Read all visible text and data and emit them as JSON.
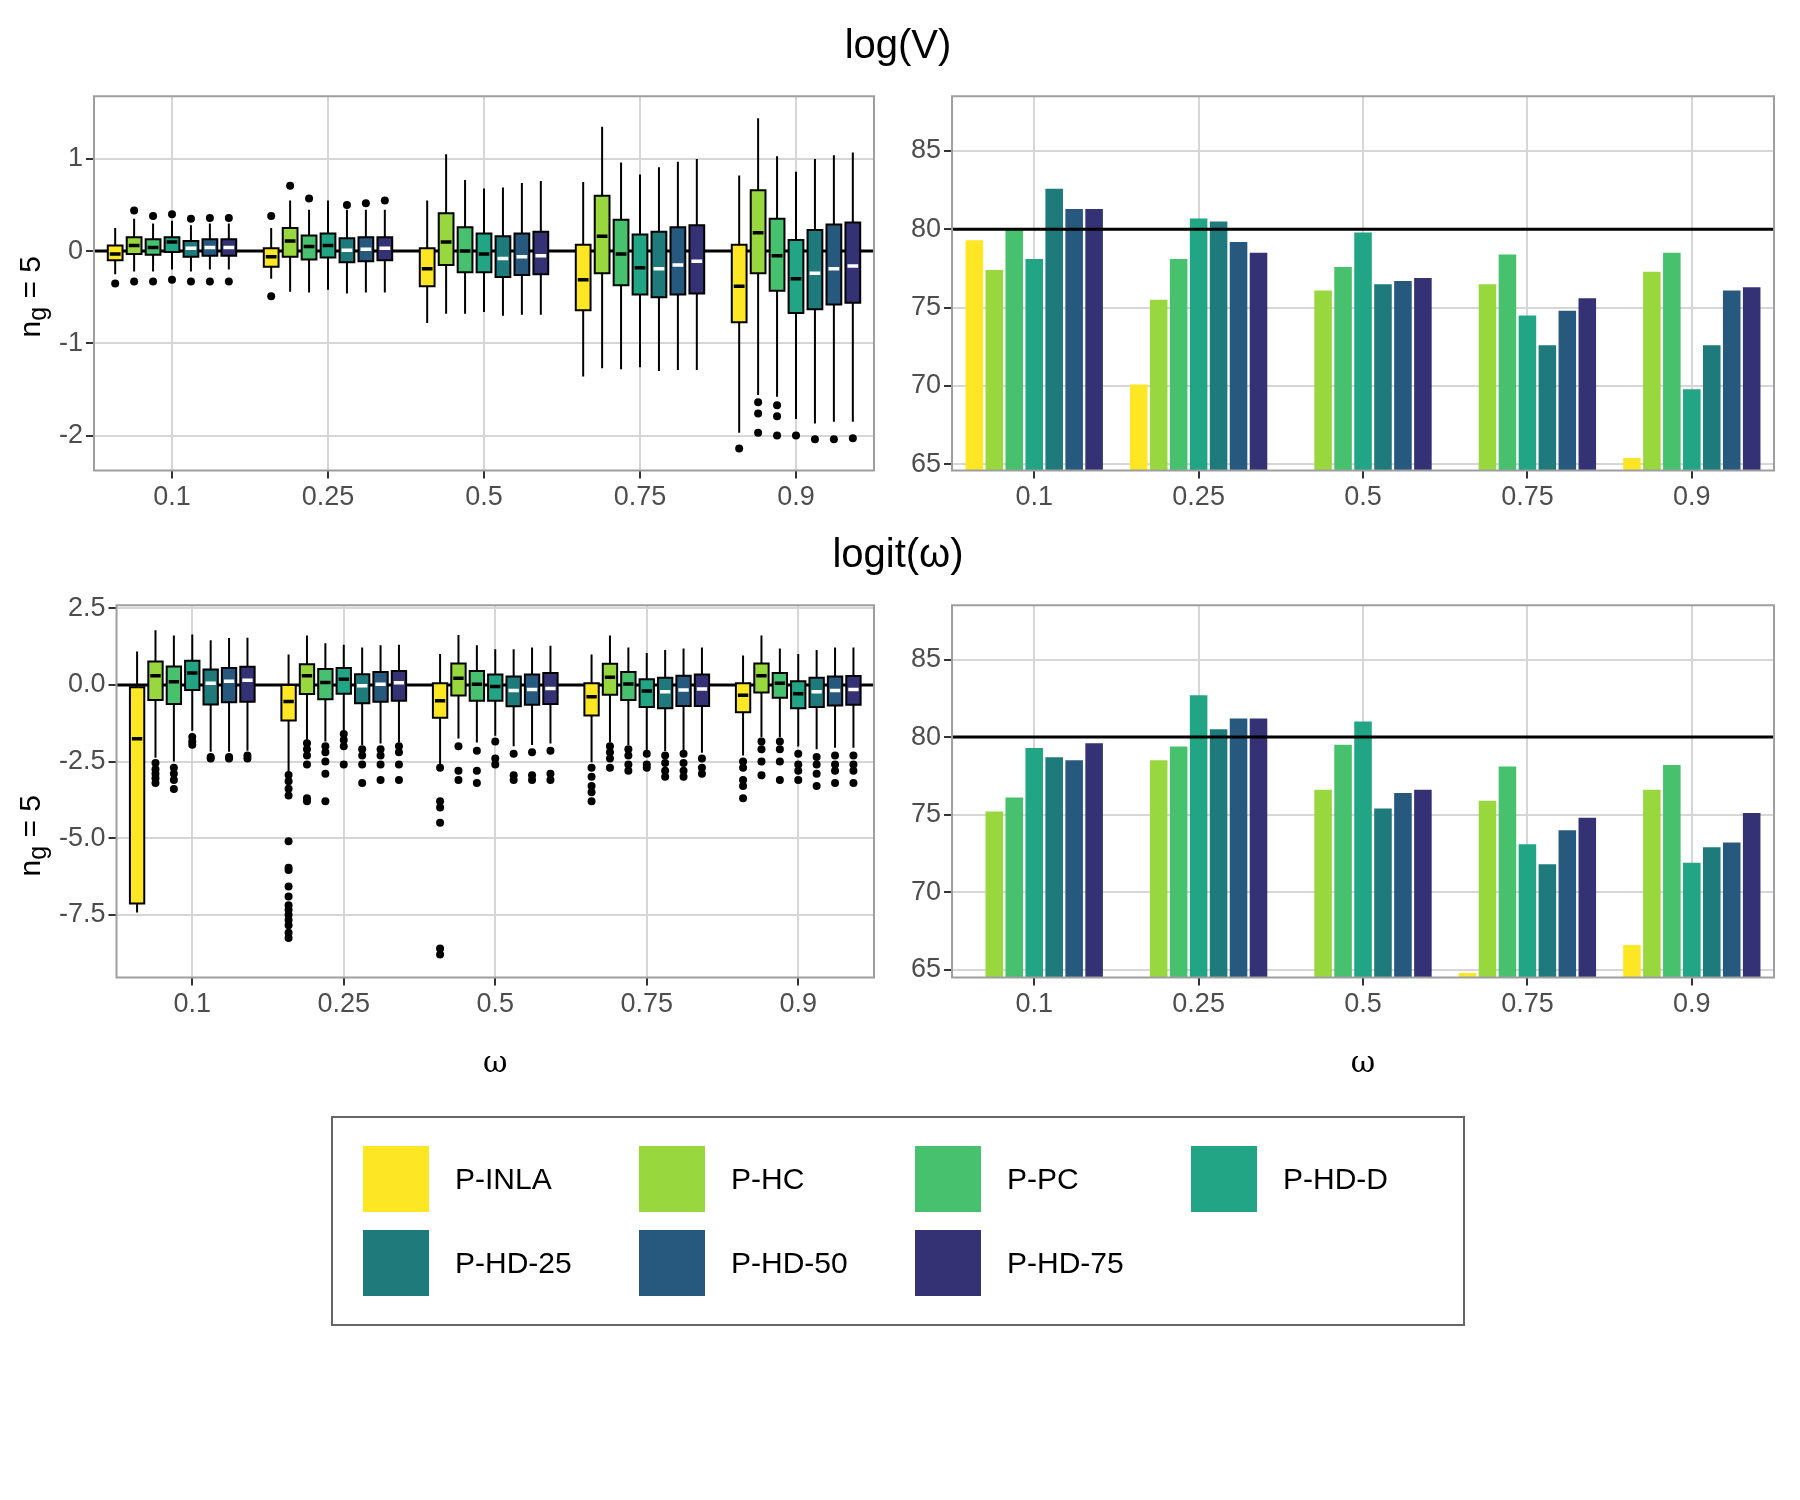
{
  "chart_data": [
    {
      "type": "box",
      "title": "log(V)",
      "ylabel": "n$_{g}$ = 5",
      "categories": [
        "0.1",
        "0.25",
        "0.5",
        "0.75",
        "0.9"
      ],
      "ylim": [
        -2.38,
        1.68
      ],
      "yticks": [
        -2,
        -1,
        0,
        1
      ],
      "grid": true,
      "legend": "bottom",
      "ref_lines": [
        {
          "axis": "y",
          "value": 0,
          "color": "#000000"
        }
      ],
      "series": [
        {
          "name": "P-INLA",
          "color": "#fde725",
          "boxes": [
            {
              "low": -0.25,
              "q1": -0.1,
              "median": -0.03,
              "q3": 0.06,
              "high": 0.25,
              "outliers": [
                -0.35
              ]
            },
            {
              "low": -0.3,
              "q1": -0.17,
              "median": -0.06,
              "q3": 0.03,
              "high": 0.25,
              "outliers": [
                0.38,
                -0.49
              ]
            },
            {
              "low": -0.78,
              "q1": -0.38,
              "median": -0.19,
              "q3": 0.03,
              "high": 0.55
            },
            {
              "low": -1.36,
              "q1": -0.64,
              "median": -0.31,
              "q3": 0.07,
              "high": 0.75
            },
            {
              "low": -1.97,
              "q1": -0.77,
              "median": -0.38,
              "q3": 0.07,
              "high": 0.82,
              "outliers": [
                -2.14
              ]
            }
          ]
        },
        {
          "name": "P-HC",
          "color": "#98d83e",
          "boxes": [
            {
              "low": -0.22,
              "q1": -0.03,
              "median": 0.06,
              "q3": 0.15,
              "high": 0.35,
              "outliers": [
                0.44,
                -0.33
              ]
            },
            {
              "low": -0.44,
              "q1": -0.06,
              "median": 0.11,
              "q3": 0.25,
              "high": 0.55,
              "outliers": [
                0.71
              ]
            },
            {
              "low": -0.68,
              "q1": -0.15,
              "median": 0.1,
              "q3": 0.41,
              "high": 1.05
            },
            {
              "low": -1.27,
              "q1": -0.24,
              "median": 0.16,
              "q3": 0.6,
              "high": 1.35
            },
            {
              "low": -1.56,
              "q1": -0.24,
              "median": 0.2,
              "q3": 0.66,
              "high": 1.44,
              "outliers": [
                -1.64,
                -1.76,
                -1.97
              ]
            }
          ]
        },
        {
          "name": "P-PC",
          "color": "#48c16e",
          "boxes": [
            {
              "low": -0.22,
              "q1": -0.04,
              "median": 0.04,
              "q3": 0.13,
              "high": 0.3,
              "outliers": [
                0.38,
                -0.33
              ]
            },
            {
              "low": -0.45,
              "q1": -0.09,
              "median": 0.05,
              "q3": 0.17,
              "high": 0.45,
              "outliers": [
                0.57
              ]
            },
            {
              "low": -0.68,
              "q1": -0.23,
              "median": 0,
              "q3": 0.26,
              "high": 0.77
            },
            {
              "low": -1.28,
              "q1": -0.37,
              "median": -0.03,
              "q3": 0.34,
              "high": 0.96
            },
            {
              "low": -1.58,
              "q1": -0.43,
              "median": -0.05,
              "q3": 0.35,
              "high": 1.03,
              "outliers": [
                -1.67,
                -1.79,
                -2.0
              ]
            }
          ]
        },
        {
          "name": "P-HD-D",
          "color": "#21a585",
          "boxes": [
            {
              "low": -0.2,
              "q1": -0.01,
              "median": 0.1,
              "q3": 0.15,
              "high": 0.33,
              "outliers": [
                0.4,
                -0.31
              ]
            },
            {
              "low": -0.42,
              "q1": -0.07,
              "median": 0.06,
              "q3": 0.19,
              "high": 0.55
            },
            {
              "low": -0.66,
              "q1": -0.23,
              "median": -0.03,
              "q3": 0.19,
              "high": 0.68
            },
            {
              "low": -1.26,
              "q1": -0.47,
              "median": -0.18,
              "q3": 0.18,
              "high": 0.83
            },
            {
              "low": -1.82,
              "q1": -0.67,
              "median": -0.3,
              "q3": 0.12,
              "high": 0.86,
              "outliers": [
                -2.0
              ]
            }
          ]
        },
        {
          "name": "P-HD-25",
          "color": "#1f7a7c",
          "boxes": [
            {
              "low": -0.22,
              "q1": -0.06,
              "median": 0.03,
              "q3": 0.11,
              "high": 0.28,
              "outliers": [
                0.35,
                -0.33
              ]
            },
            {
              "low": -0.46,
              "q1": -0.12,
              "median": 0.01,
              "q3": 0.14,
              "high": 0.45,
              "outliers": [
                0.5
              ]
            },
            {
              "low": -0.7,
              "q1": -0.28,
              "median": -0.08,
              "q3": 0.16,
              "high": 0.69
            },
            {
              "low": -1.3,
              "q1": -0.5,
              "median": -0.19,
              "q3": 0.21,
              "high": 0.91
            },
            {
              "low": -1.87,
              "q1": -0.63,
              "median": -0.24,
              "q3": 0.23,
              "high": 1.0,
              "outliers": [
                -2.04
              ]
            }
          ]
        },
        {
          "name": "P-HD-50",
          "color": "#27587e",
          "boxes": [
            {
              "low": -0.2,
              "q1": -0.05,
              "median": 0.04,
              "q3": 0.13,
              "high": 0.3,
              "outliers": [
                0.36,
                -0.33
              ]
            },
            {
              "low": -0.45,
              "q1": -0.11,
              "median": 0.02,
              "q3": 0.15,
              "high": 0.45,
              "outliers": [
                0.52
              ]
            },
            {
              "low": -0.69,
              "q1": -0.26,
              "median": -0.06,
              "q3": 0.19,
              "high": 0.74
            },
            {
              "low": -1.29,
              "q1": -0.47,
              "median": -0.15,
              "q3": 0.26,
              "high": 0.97
            },
            {
              "low": -1.85,
              "q1": -0.58,
              "median": -0.19,
              "q3": 0.29,
              "high": 1.04,
              "outliers": [
                -2.04
              ]
            }
          ]
        },
        {
          "name": "P-HD-75",
          "color": "#343274",
          "boxes": [
            {
              "low": -0.2,
              "q1": -0.05,
              "median": 0.04,
              "q3": 0.13,
              "high": 0.3,
              "outliers": [
                0.36,
                -0.33
              ]
            },
            {
              "low": -0.45,
              "q1": -0.1,
              "median": 0.03,
              "q3": 0.15,
              "high": 0.45,
              "outliers": [
                0.55
              ]
            },
            {
              "low": -0.69,
              "q1": -0.25,
              "median": -0.05,
              "q3": 0.21,
              "high": 0.76
            },
            {
              "low": -1.29,
              "q1": -0.46,
              "median": -0.11,
              "q3": 0.28,
              "high": 1.0
            },
            {
              "low": -1.85,
              "q1": -0.56,
              "median": -0.16,
              "q3": 0.31,
              "high": 1.07,
              "outliers": [
                -2.03
              ]
            }
          ]
        }
      ]
    },
    {
      "type": "bar",
      "categories": [
        "0.1",
        "0.25",
        "0.5",
        "0.75",
        "0.9"
      ],
      "ylim": [
        64.6,
        88.5
      ],
      "yticks": [
        65,
        70,
        75,
        80,
        85
      ],
      "grid": true,
      "ref_lines": [
        {
          "axis": "y",
          "value": 80,
          "color": "#000000"
        }
      ],
      "series": [
        {
          "color": "#fde725",
          "values": [
            79.3,
            70.1,
            null,
            null,
            65.4
          ]
        },
        {
          "color": "#98d83e",
          "values": [
            77.4,
            75.5,
            76.1,
            76.5,
            77.3
          ]
        },
        {
          "color": "#48c16e",
          "values": [
            80.0,
            78.1,
            77.6,
            78.4,
            78.5
          ]
        },
        {
          "color": "#21a585",
          "values": [
            78.1,
            80.7,
            79.8,
            74.5,
            69.8
          ]
        },
        {
          "color": "#1f7a7c",
          "values": [
            82.6,
            80.5,
            76.5,
            72.6,
            72.6
          ]
        },
        {
          "color": "#27587e",
          "values": [
            81.3,
            79.2,
            76.7,
            74.8,
            76.1
          ]
        },
        {
          "color": "#343274",
          "values": [
            81.3,
            78.5,
            76.9,
            75.6,
            76.3
          ]
        }
      ]
    },
    {
      "type": "box",
      "title": "logit(ω)",
      "ylabel": "n$_{g}$ = 5",
      "xlabel": "ω",
      "categories": [
        "0.1",
        "0.25",
        "0.5",
        "0.75",
        "0.9"
      ],
      "ylim": [
        -9.55,
        2.6
      ],
      "yticks": [
        {
          "value": -7.5,
          "label": "-7.5"
        },
        {
          "value": -5,
          "label": "-5.0"
        },
        {
          "value": -2.5,
          "label": "-2.5"
        },
        {
          "value": 0,
          "label": "0.0"
        },
        {
          "value": 2.5,
          "label": "2.5"
        }
      ],
      "grid": true,
      "ref_lines": [
        {
          "axis": "y",
          "value": 0,
          "color": "#000000"
        }
      ],
      "series": [
        {
          "color": "#fde725",
          "boxes": [
            {
              "low": -7.43,
              "q1": -7.13,
              "median": -1.76,
              "q3": -0.08,
              "high": 1.09
            },
            {
              "low": -2.87,
              "q1": -1.16,
              "median": -0.54,
              "q3": 0,
              "high": 0.99,
              "outliers": [
                -2.94,
                -3.14,
                -3.39,
                -3.61,
                -5.1,
                -5.97,
                -6.04,
                -6.58,
                -6.9,
                -7.19,
                -7.34,
                -7.5,
                -7.67,
                -7.84,
                -8.09,
                -8.26
              ]
            },
            {
              "low": -2.6,
              "q1": -1.07,
              "median": -0.52,
              "q3": 0.05,
              "high": 1.01,
              "outliers": [
                -2.7,
                -3.8,
                -4.0,
                -4.5,
                -8.6,
                -8.8
              ]
            },
            {
              "low": -2.52,
              "q1": -1.0,
              "median": -0.39,
              "q3": 0.05,
              "high": 0.99,
              "outliers": [
                -2.7,
                -3.0,
                -3.3,
                -3.5,
                -3.8
              ]
            },
            {
              "low": -2.3,
              "q1": -0.89,
              "median": -0.34,
              "q3": 0.05,
              "high": 0.96,
              "outliers": [
                -2.5,
                -2.7,
                -3.1,
                -3.3,
                -3.7
              ]
            }
          ]
        },
        {
          "color": "#98d83e",
          "boxes": [
            {
              "low": -2.38,
              "q1": -0.49,
              "median": 0.3,
              "q3": 0.76,
              "high": 1.78,
              "outliers": [
                -2.55,
                -2.75,
                -2.9,
                -3.05,
                -3.2
              ]
            },
            {
              "low": -1.8,
              "q1": -0.3,
              "median": 0.3,
              "q3": 0.67,
              "high": 1.61,
              "outliers": [
                -1.9,
                -2.1,
                -2.3,
                -2.6,
                -3.7,
                -3.8
              ]
            },
            {
              "low": -1.75,
              "q1": -0.35,
              "median": 0.22,
              "q3": 0.7,
              "high": 1.63,
              "outliers": [
                -2.0,
                -2.8,
                -3.1
              ]
            },
            {
              "low": -1.88,
              "q1": -0.32,
              "median": 0.25,
              "q3": 0.69,
              "high": 1.61,
              "outliers": [
                -2.0,
                -2.2,
                -2.4,
                -2.7
              ]
            },
            {
              "low": -1.71,
              "q1": -0.25,
              "median": 0.3,
              "q3": 0.7,
              "high": 1.61,
              "outliers": [
                -1.85,
                -2.1,
                -2.5,
                -2.95
              ]
            }
          ]
        },
        {
          "color": "#48c16e",
          "boxes": [
            {
              "low": -2.5,
              "q1": -0.62,
              "median": 0.1,
              "q3": 0.6,
              "high": 1.61,
              "outliers": [
                -2.7,
                -2.9,
                -3.1,
                -3.4
              ]
            },
            {
              "low": -1.85,
              "q1": -0.47,
              "median": 0.08,
              "q3": 0.52,
              "high": 1.36,
              "outliers": [
                -2.0,
                -2.2,
                -2.5,
                -2.9,
                -3.8
              ]
            },
            {
              "low": -1.88,
              "q1": -0.52,
              "median": 0.02,
              "q3": 0.45,
              "high": 1.29,
              "outliers": [
                -2.15,
                -2.8,
                -3.2
              ]
            },
            {
              "low": -1.96,
              "q1": -0.49,
              "median": 0.03,
              "q3": 0.42,
              "high": 1.22,
              "outliers": [
                -2.1,
                -2.3,
                -2.6,
                -2.8
              ]
            },
            {
              "low": -1.71,
              "q1": -0.42,
              "median": 0.05,
              "q3": 0.39,
              "high": 1.19,
              "outliers": [
                -1.85,
                -2.1,
                -2.5,
                -3.1
              ]
            }
          ]
        },
        {
          "color": "#21a585",
          "boxes": [
            {
              "low": -1.5,
              "q1": -0.17,
              "median": 0.39,
              "q3": 0.79,
              "high": 1.64,
              "outliers": [
                -1.7,
                -1.85,
                -1.95
              ]
            },
            {
              "low": -1.54,
              "q1": -0.29,
              "median": 0.18,
              "q3": 0.55,
              "high": 1.31,
              "outliers": [
                -1.6,
                -1.8,
                -2.0,
                -2.6
              ]
            },
            {
              "low": -1.66,
              "q1": -0.52,
              "median": -0.05,
              "q3": 0.34,
              "high": 1.16,
              "outliers": [
                -1.85,
                -2.4,
                -2.6
              ]
            },
            {
              "low": -2.13,
              "q1": -0.72,
              "median": -0.2,
              "q3": 0.18,
              "high": 1.04,
              "outliers": [
                -2.25,
                -2.6,
                -2.7
              ]
            },
            {
              "low": -2.01,
              "q1": -0.76,
              "median": -0.29,
              "q3": 0.12,
              "high": 1.01,
              "outliers": [
                -2.25,
                -2.6,
                -2.8,
                -3.1
              ]
            }
          ]
        },
        {
          "color": "#1f7a7c",
          "boxes": [
            {
              "low": -2.18,
              "q1": -0.64,
              "median": 0.05,
              "q3": 0.5,
              "high": 1.46,
              "outliers": [
                -2.35,
                -2.4
              ]
            },
            {
              "low": -1.96,
              "q1": -0.6,
              "median": -0.03,
              "q3": 0.35,
              "high": 1.22,
              "outliers": [
                -2.1,
                -2.3,
                -2.6,
                -3.2
              ]
            },
            {
              "low": -2.0,
              "q1": -0.7,
              "median": -0.18,
              "q3": 0.27,
              "high": 1.16,
              "outliers": [
                -2.25,
                -2.95,
                -3.1
              ]
            },
            {
              "low": -2.16,
              "q1": -0.76,
              "median": -0.22,
              "q3": 0.23,
              "high": 1.14,
              "outliers": [
                -2.3,
                -2.55,
                -2.8,
                -3.0
              ]
            },
            {
              "low": -2.1,
              "q1": -0.72,
              "median": -0.22,
              "q3": 0.23,
              "high": 1.14,
              "outliers": [
                -2.35,
                -2.6,
                -2.9,
                -3.3
              ]
            }
          ]
        },
        {
          "color": "#27587e",
          "boxes": [
            {
              "low": -2.18,
              "q1": -0.57,
              "median": 0.12,
              "q3": 0.55,
              "high": 1.53,
              "outliers": [
                -2.35,
                -2.4
              ]
            },
            {
              "low": -1.91,
              "q1": -0.55,
              "median": 0.02,
              "q3": 0.42,
              "high": 1.29,
              "outliers": [
                -2.1,
                -2.3,
                -2.6,
                -3.1
              ]
            },
            {
              "low": -1.96,
              "q1": -0.65,
              "median": -0.15,
              "q3": 0.34,
              "high": 1.22,
              "outliers": [
                -2.2,
                -2.95,
                -3.1
              ]
            },
            {
              "low": -2.13,
              "q1": -0.69,
              "median": -0.17,
              "q3": 0.3,
              "high": 1.19,
              "outliers": [
                -2.25,
                -2.55,
                -2.8,
                -3.0
              ]
            },
            {
              "low": -2.05,
              "q1": -0.67,
              "median": -0.18,
              "q3": 0.27,
              "high": 1.22,
              "outliers": [
                -2.3,
                -2.6,
                -2.8,
                -3.2
              ]
            }
          ]
        },
        {
          "color": "#343274",
          "boxes": [
            {
              "low": -2.15,
              "q1": -0.55,
              "median": 0.15,
              "q3": 0.59,
              "high": 1.54,
              "outliers": [
                -2.3,
                -2.4
              ]
            },
            {
              "low": -1.88,
              "q1": -0.52,
              "median": 0.07,
              "q3": 0.45,
              "high": 1.31,
              "outliers": [
                -2.0,
                -2.2,
                -2.6,
                -3.1
              ]
            },
            {
              "low": -1.91,
              "q1": -0.62,
              "median": -0.12,
              "q3": 0.39,
              "high": 1.28,
              "outliers": [
                -2.15,
                -2.9,
                -3.1
              ]
            },
            {
              "low": -2.21,
              "q1": -0.69,
              "median": -0.13,
              "q3": 0.34,
              "high": 1.22,
              "outliers": [
                -2.4,
                -2.7,
                -2.9
              ]
            },
            {
              "low": -2.05,
              "q1": -0.65,
              "median": -0.15,
              "q3": 0.29,
              "high": 1.22,
              "outliers": [
                -2.3,
                -2.6,
                -2.8,
                -3.2
              ]
            }
          ]
        }
      ]
    },
    {
      "type": "bar",
      "xlabel": "ω",
      "categories": [
        "0.1",
        "0.25",
        "0.5",
        "0.75",
        "0.9"
      ],
      "ylim": [
        64.5,
        88.5
      ],
      "yticks": [
        65,
        70,
        75,
        80,
        85
      ],
      "grid": true,
      "ref_lines": [
        {
          "axis": "y",
          "value": 80,
          "color": "#000000"
        }
      ],
      "series": [
        {
          "color": "#fde725",
          "values": [
            null,
            null,
            null,
            64.8,
            66.6
          ]
        },
        {
          "color": "#98d83e",
          "values": [
            75.2,
            78.5,
            76.6,
            75.9,
            76.6
          ]
        },
        {
          "color": "#48c16e",
          "values": [
            76.1,
            79.4,
            79.5,
            78.1,
            78.2
          ]
        },
        {
          "color": "#21a585",
          "values": [
            79.3,
            82.7,
            81.0,
            73.1,
            71.9
          ]
        },
        {
          "color": "#1f7a7c",
          "values": [
            78.7,
            80.5,
            75.4,
            71.8,
            72.9
          ]
        },
        {
          "color": "#27587e",
          "values": [
            78.5,
            81.2,
            76.4,
            74.0,
            73.2
          ]
        },
        {
          "color": "#343274",
          "values": [
            79.6,
            81.2,
            76.6,
            74.8,
            75.1
          ]
        }
      ]
    }
  ]
}
